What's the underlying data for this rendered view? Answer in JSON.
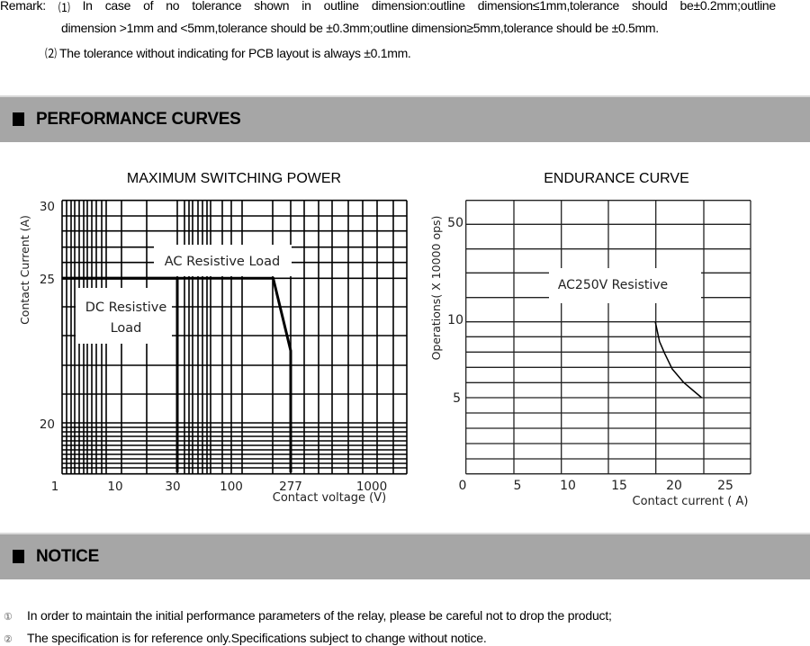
{
  "remark": {
    "prefix": "Remark:",
    "item1_marker": "⑴",
    "item1_line1_words": [
      "In",
      "case",
      "of",
      "no",
      "tolerance",
      "shown",
      "in",
      "outline",
      "dimension:outline",
      "dimension≤1mm,tolerance",
      "should",
      "be±0.2mm;outline"
    ],
    "item1_line2": "dimension >1mm and <5mm,tolerance should be ±0.3mm;outline dimension≥5mm,tolerance should be ±0.5mm.",
    "item2_marker": "⑵",
    "item2_text": "The tolerance without indicating for PCB layout is always ±0.1mm."
  },
  "sections": {
    "performance_title": "PERFORMANCE CURVES",
    "notice_title": "NOTICE"
  },
  "notice": {
    "items": [
      {
        "marker": "①",
        "text": "In order to maintain the initial performance parameters of the relay, please be careful not to drop the product;"
      },
      {
        "marker": "②",
        "text": "The specification is for reference only.Specifications subject to change without notice."
      }
    ]
  },
  "colors": {
    "section_bar": "#a6a6a6",
    "grid": "#000000",
    "curve": "#000000"
  },
  "chart_data": [
    {
      "type": "line",
      "title": "MAXIMUM SWITCHING POWER",
      "xlabel": "Contact voltage (V)",
      "ylabel": "Contact Current (A)",
      "x_scale": "log",
      "x_ticks": [
        "1",
        "10",
        "30",
        "100",
        "277",
        "1000"
      ],
      "y_ticks": [
        "30",
        "25",
        "20"
      ],
      "grid": true,
      "annotations": [
        "AC Resistive Load",
        "DC Resistive",
        "Load"
      ],
      "series": [
        {
          "label_ref": "DC Resistive Load",
          "points": [
            [
              1,
              25
            ],
            [
              30,
              25
            ],
            [
              30,
              18.3
            ]
          ]
        },
        {
          "label_ref": "AC Resistive Load",
          "points": [
            [
              1,
              25
            ],
            [
              205,
              25
            ],
            [
              277,
              22.5
            ],
            [
              277,
              18.3
            ]
          ]
        }
      ]
    },
    {
      "type": "line",
      "title": "ENDURANCE CURVE",
      "xlabel": "Contact current ( A)",
      "ylabel": "Operations( X 10000 ops)",
      "x_ticks": [
        "0",
        "5",
        "10",
        "15",
        "20",
        "25"
      ],
      "y_ticks": [
        "50",
        "10",
        "5"
      ],
      "grid": true,
      "annotations": [
        "AC250V Resistive"
      ],
      "series": [
        {
          "points": [
            [
              18.3,
              10
            ],
            [
              18.7,
              8.7
            ],
            [
              19.2,
              7.9
            ],
            [
              19.9,
              6.9
            ],
            [
              21.0,
              6.0
            ],
            [
              22.7,
              5
            ]
          ]
        }
      ]
    }
  ]
}
